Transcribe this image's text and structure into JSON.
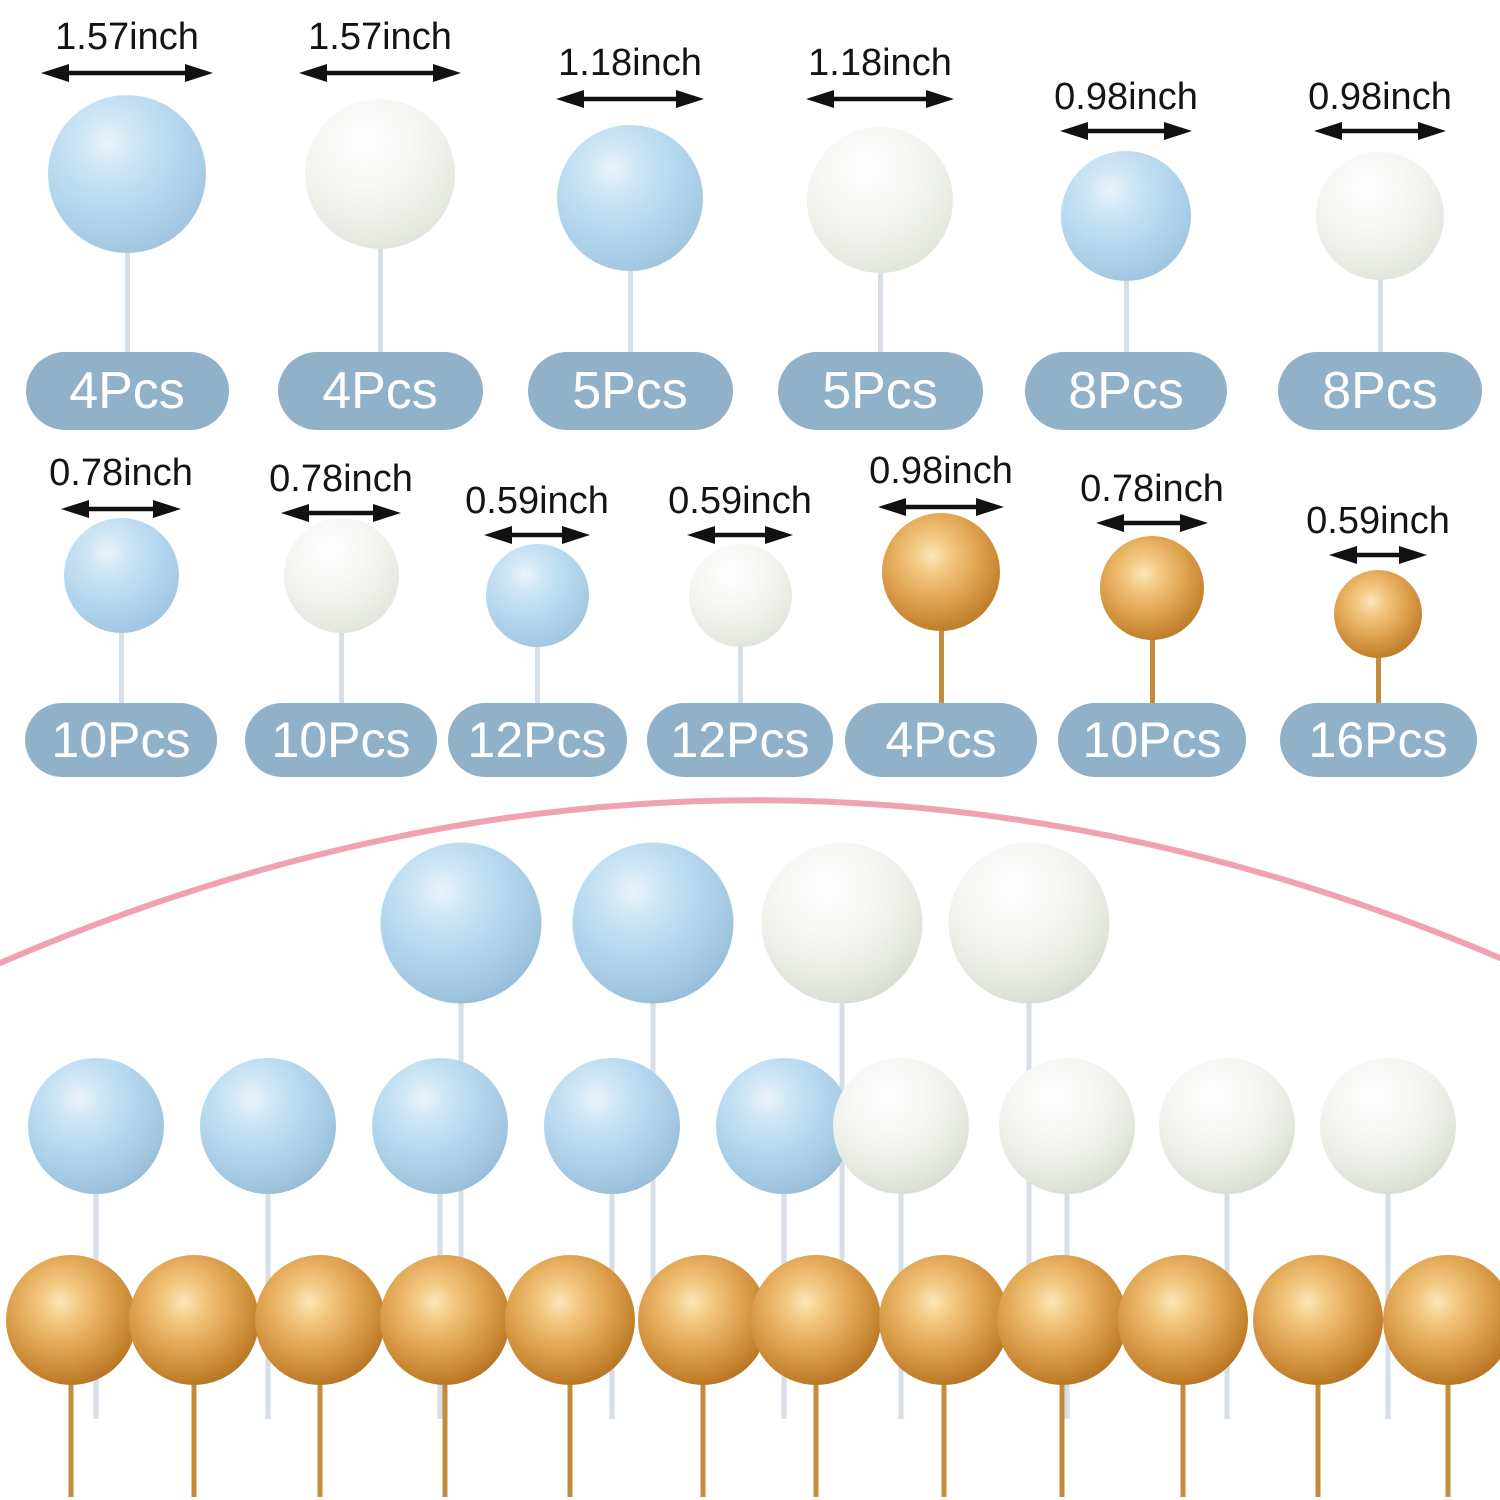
{
  "product": "ball cake topper size chart",
  "colors": {
    "background": "#ffffff",
    "pill_bg": "#91b1c9",
    "pill_text": "#ffffff",
    "measure_text": "#141414",
    "arrow": "#111111",
    "arc_pink": "#f0a1b2",
    "stem_light": "#d6dee8",
    "stem_gold": "#c28b3d",
    "ball_blue": "#b4d7ee",
    "ball_white": "#eef0ea",
    "ball_gold": "#dd9e4a"
  },
  "spec_rows": [
    {
      "items": [
        {
          "color": "blue",
          "size": "1.57inch",
          "count": "4Pcs"
        },
        {
          "color": "white",
          "size": "1.57inch",
          "count": "4Pcs"
        },
        {
          "color": "blue",
          "size": "1.18inch",
          "count": "5Pcs"
        },
        {
          "color": "white",
          "size": "1.18inch",
          "count": "5Pcs"
        },
        {
          "color": "blue",
          "size": "0.98inch",
          "count": "8Pcs"
        },
        {
          "color": "white",
          "size": "0.98inch",
          "count": "8Pcs"
        }
      ]
    },
    {
      "items": [
        {
          "color": "blue",
          "size": "0.78inch",
          "count": "10Pcs"
        },
        {
          "color": "white",
          "size": "0.78inch",
          "count": "10Pcs"
        },
        {
          "color": "blue",
          "size": "0.59inch",
          "count": "12Pcs"
        },
        {
          "color": "white",
          "size": "0.59inch",
          "count": "12Pcs"
        },
        {
          "color": "gold",
          "size": "0.98inch",
          "count": "4Pcs"
        },
        {
          "color": "gold",
          "size": "0.78inch",
          "count": "10Pcs"
        },
        {
          "color": "gold",
          "size": "0.59inch",
          "count": "16Pcs"
        }
      ]
    }
  ],
  "arrangement": {
    "top_row_colors": [
      "blue",
      "blue",
      "white",
      "white"
    ],
    "middle_row_colors": [
      "blue",
      "blue",
      "blue",
      "blue",
      "blue",
      "white",
      "white",
      "white",
      "white"
    ],
    "bottom_row_colors": [
      "gold",
      "gold",
      "gold",
      "gold",
      "gold",
      "gold",
      "gold",
      "gold",
      "gold",
      "gold",
      "gold",
      "gold"
    ]
  }
}
